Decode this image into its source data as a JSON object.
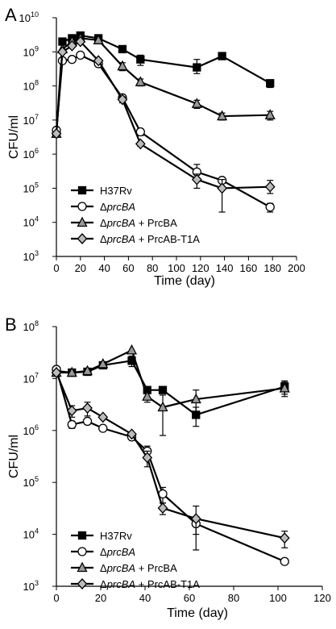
{
  "chart_data": [
    {
      "type": "line",
      "panel_label": "A",
      "xlabel": "Time (day)",
      "ylabel": "CFU/ml",
      "xlim": [
        0,
        200
      ],
      "ylim": [
        1000,
        10000000000
      ],
      "yscale": "log",
      "x_ticks": [
        0,
        20,
        40,
        60,
        80,
        100,
        120,
        140,
        160,
        180,
        200
      ],
      "y_ticks": [
        {
          "base": "10",
          "exp": "3",
          "value": 1000
        },
        {
          "base": "10",
          "exp": "4",
          "value": 10000
        },
        {
          "base": "10",
          "exp": "5",
          "value": 100000
        },
        {
          "base": "10",
          "exp": "6",
          "value": 1000000
        },
        {
          "base": "10",
          "exp": "7",
          "value": 10000000
        },
        {
          "base": "10",
          "exp": "8",
          "value": 100000000
        },
        {
          "base": "10",
          "exp": "9",
          "value": 1000000000
        },
        {
          "base": "10",
          "exp": "10",
          "value": 10000000000
        }
      ],
      "legend_position": "bottom-left",
      "series": [
        {
          "legend": "H37Rv",
          "marker": "square",
          "color": "#000000",
          "x": [
            0,
            5,
            13,
            20,
            35,
            55,
            70,
            117,
            138,
            178
          ],
          "y": [
            4000000,
            2000000000,
            2500000000,
            3000000000,
            2500000000,
            1200000000,
            600000000,
            350000000,
            750000000,
            120000000
          ],
          "err": [
            [
              0,
              0,
              0,
              0,
              0,
              0,
              200000000,
              120000000,
              150000000,
              30000000
            ],
            [
              0,
              0,
              0,
              0,
              0,
              0,
              200000000,
              250000000,
              150000000,
              30000000
            ]
          ]
        },
        {
          "legend": "ΔprcBA",
          "marker": "circle",
          "color": "#ffffff",
          "x": [
            0,
            5,
            13,
            20,
            35,
            55,
            70,
            117,
            138,
            178
          ],
          "y": [
            5000000,
            550000000,
            600000000,
            800000000,
            450000000,
            45000000,
            4500000,
            300000,
            170000,
            28000
          ],
          "err": [
            [
              0,
              0,
              0,
              0,
              0,
              10000000,
              1000000,
              100000,
              30000,
              8000
            ],
            [
              0,
              0,
              0,
              0,
              0,
              10000000,
              1000000,
              200000,
              30000,
              8000
            ]
          ]
        },
        {
          "legend": "ΔprcBA + PrcBA",
          "marker": "triangle",
          "color": "#999999",
          "x": [
            0,
            5,
            13,
            20,
            35,
            55,
            70,
            117,
            138,
            178
          ],
          "y": [
            4000000,
            1200000000,
            2000000000,
            2500000000,
            2200000000,
            380000000,
            130000000,
            30000000,
            13000000,
            14000000
          ],
          "err": [
            [
              0,
              0,
              0,
              0,
              0,
              100000000,
              30000000,
              8000000,
              3000000,
              4000000
            ],
            [
              0,
              0,
              0,
              0,
              0,
              100000000,
              30000000,
              8000000,
              3000000,
              4000000
            ]
          ]
        },
        {
          "legend": "ΔprcBA + PrcAB-T1A",
          "marker": "diamond",
          "color": "#bbbbbb",
          "x": [
            0,
            5,
            13,
            20,
            35,
            55,
            70,
            117,
            138,
            178
          ],
          "y": [
            4000000,
            1000000000,
            1500000000,
            2000000000,
            550000000,
            40000000,
            2000000,
            180000,
            100000,
            110000
          ],
          "err": [
            [
              0,
              0,
              0,
              0,
              0,
              8000000,
              300000,
              80000,
              80000,
              40000
            ],
            [
              0,
              0,
              0,
              0,
              0,
              8000000,
              300000,
              80000,
              80000,
              60000
            ]
          ]
        }
      ]
    },
    {
      "type": "line",
      "panel_label": "B",
      "xlabel": "Time (day)",
      "ylabel": "CFU/ml",
      "xlim": [
        0,
        120
      ],
      "ylim": [
        1000,
        100000000
      ],
      "yscale": "log",
      "x_ticks": [
        0,
        20,
        40,
        60,
        80,
        100,
        120
      ],
      "y_ticks": [
        {
          "base": "10",
          "exp": "3",
          "value": 1000
        },
        {
          "base": "10",
          "exp": "4",
          "value": 10000
        },
        {
          "base": "10",
          "exp": "5",
          "value": 100000
        },
        {
          "base": "10",
          "exp": "6",
          "value": 1000000
        },
        {
          "base": "10",
          "exp": "7",
          "value": 10000000
        },
        {
          "base": "10",
          "exp": "8",
          "value": 100000000
        }
      ],
      "legend_position": "bottom-left",
      "series": [
        {
          "legend": "H37Rv",
          "marker": "square",
          "color": "#000000",
          "x": [
            0,
            7,
            14,
            21,
            34,
            41,
            48,
            63,
            103
          ],
          "y": [
            14000000,
            13000000,
            13500000,
            18000000,
            22000000,
            6000000,
            6000000,
            2000000,
            7000000
          ],
          "err": [
            [
              0,
              0,
              0,
              0,
              5000000,
              0,
              0,
              800000,
              2000000
            ],
            [
              0,
              0,
              0,
              0,
              5000000,
              0,
              0,
              800000,
              2000000
            ]
          ]
        },
        {
          "legend": "ΔprcBA",
          "marker": "circle",
          "color": "#ffffff",
          "x": [
            0,
            7,
            14,
            21,
            34,
            41,
            48,
            63,
            103
          ],
          "y": [
            15000000,
            1300000,
            1500000,
            1100000,
            750000,
            400000,
            60000,
            16000,
            3000
          ],
          "err": [
            [
              0,
              200000,
              200000,
              0,
              0,
              100000,
              20000,
              6000,
              0
            ],
            [
              0,
              200000,
              200000,
              0,
              0,
              100000,
              20000,
              6000,
              0
            ]
          ]
        },
        {
          "legend": "ΔprcBA + PrcBA",
          "marker": "triangle",
          "color": "#999999",
          "x": [
            0,
            7,
            14,
            21,
            34,
            41,
            48,
            63,
            103
          ],
          "y": [
            13000000,
            13000000,
            14000000,
            19000000,
            35000000,
            4500000,
            2800000,
            4000000,
            6500000
          ],
          "err": [
            [
              0,
              0,
              0,
              0,
              0,
              1000000,
              2000000,
              2000000,
              2000000
            ],
            [
              0,
              0,
              0,
              0,
              0,
              1000000,
              2000000,
              2000000,
              2000000
            ]
          ]
        },
        {
          "legend": "ΔprcBA + PrcAB-T1A",
          "marker": "diamond",
          "color": "#bbbbbb",
          "x": [
            0,
            7,
            14,
            21,
            34,
            41,
            48,
            63,
            103
          ],
          "y": [
            13000000,
            2400000,
            2700000,
            1800000,
            850000,
            300000,
            32000,
            20000,
            8500
          ],
          "err": [
            [
              0,
              600000,
              800000,
              0,
              0,
              100000,
              8000,
              15000,
              3000
            ],
            [
              0,
              600000,
              800000,
              0,
              0,
              100000,
              8000,
              15000,
              3000
            ]
          ]
        }
      ]
    }
  ]
}
